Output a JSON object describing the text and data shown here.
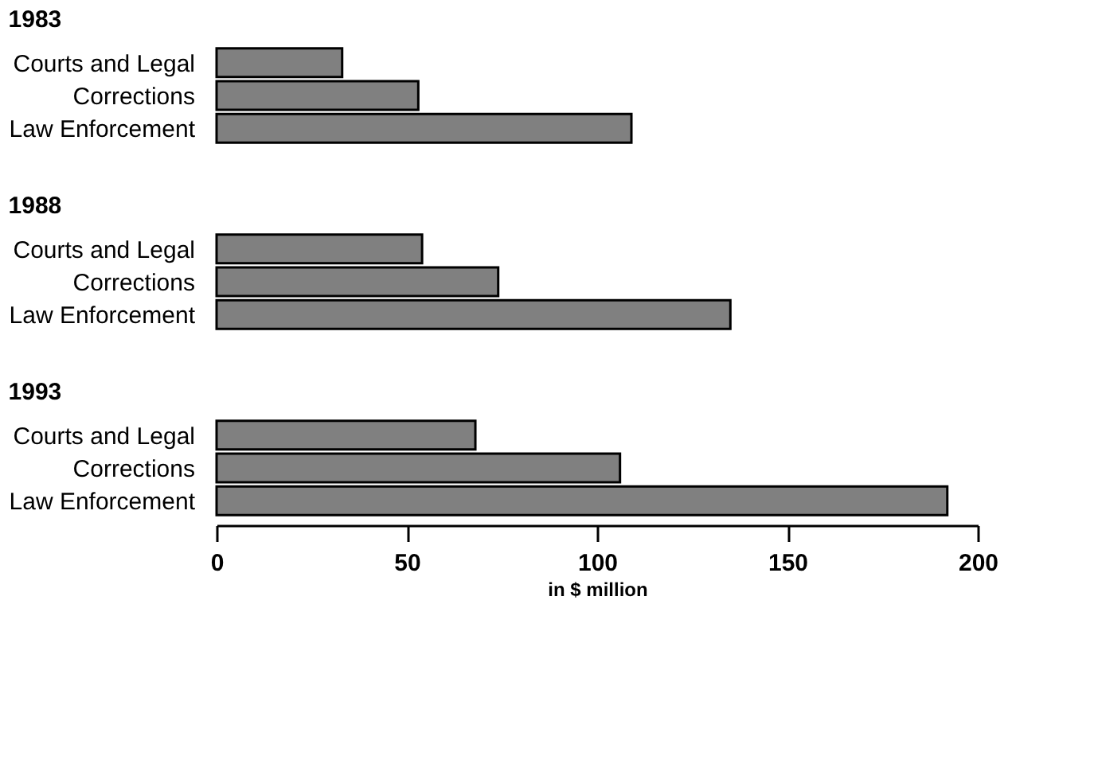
{
  "chart_data": [
    {
      "type": "bar",
      "orientation": "horizontal",
      "title": "1983",
      "categories": [
        "Courts and Legal",
        "Corrections",
        "Law Enforcement"
      ],
      "values": [
        33,
        53,
        109
      ],
      "color": "#808080",
      "xlim": [
        0,
        200
      ],
      "tick_labels": "y"
    },
    {
      "type": "bar",
      "orientation": "horizontal",
      "title": "1988",
      "categories": [
        "Courts and Legal",
        "Corrections",
        "Law Enforcement"
      ],
      "values": [
        54,
        74,
        135
      ],
      "color": "#808080",
      "xlim": [
        0,
        200
      ],
      "tick_labels": "y"
    },
    {
      "type": "bar",
      "orientation": "horizontal",
      "title": "1993",
      "categories": [
        "Courts and Legal",
        "Corrections",
        "Law Enforcement"
      ],
      "values": [
        68,
        106,
        192
      ],
      "color": "#808080",
      "xlim": [
        0,
        200
      ],
      "xticks": [
        0,
        50,
        100,
        150,
        200
      ],
      "xlabel": "in $ million"
    }
  ]
}
